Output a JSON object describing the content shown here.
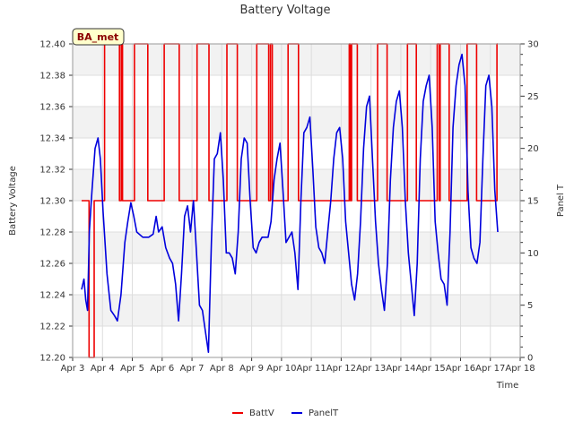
{
  "chart_data": {
    "type": "line",
    "title": "Battery Voltage",
    "xlabel": "Time",
    "ylabel": "Battery Voltage",
    "y2label": "Panel T",
    "station_label": "BA_met",
    "x_tick_labels": [
      "Apr 3",
      "Apr 4",
      "Apr 5",
      "Apr 6",
      "Apr 7",
      "Apr 8",
      "Apr 9",
      "Apr 10",
      "Apr 11",
      "Apr 12",
      "Apr 13",
      "Apr 14",
      "Apr 15",
      "Apr 16",
      "Apr 17",
      "Apr 18"
    ],
    "xlim": [
      3,
      18
    ],
    "ylim": [
      12.2,
      12.4
    ],
    "y_ticks": [
      "12.20",
      "12.22",
      "12.24",
      "12.26",
      "12.28",
      "12.30",
      "12.32",
      "12.34",
      "12.36",
      "12.38",
      "12.40"
    ],
    "y2lim": [
      0,
      30
    ],
    "y2_ticks": [
      "0",
      "5",
      "10",
      "15",
      "20",
      "25",
      "30"
    ],
    "legend": [
      {
        "name": "BattV",
        "color": "#ee0000"
      },
      {
        "name": "PanelT",
        "color": "#0000dd"
      }
    ],
    "series": [
      {
        "name": "BattV",
        "axis": "left",
        "color": "#ee0000",
        "step": true,
        "points": [
          [
            3.3,
            12.3
          ],
          [
            3.52,
            12.3
          ],
          [
            3.55,
            12.2
          ],
          [
            3.7,
            12.2
          ],
          [
            3.72,
            12.3
          ],
          [
            4.05,
            12.3
          ],
          [
            4.07,
            12.4
          ],
          [
            4.55,
            12.4
          ],
          [
            4.57,
            12.3
          ],
          [
            4.62,
            12.3
          ],
          [
            4.63,
            12.4
          ],
          [
            4.66,
            12.4
          ],
          [
            4.67,
            12.3
          ],
          [
            5.05,
            12.3
          ],
          [
            5.07,
            12.4
          ],
          [
            5.5,
            12.4
          ],
          [
            5.52,
            12.3
          ],
          [
            6.05,
            12.3
          ],
          [
            6.07,
            12.4
          ],
          [
            6.55,
            12.4
          ],
          [
            6.57,
            12.3
          ],
          [
            7.15,
            12.3
          ],
          [
            7.17,
            12.4
          ],
          [
            7.55,
            12.4
          ],
          [
            7.57,
            12.3
          ],
          [
            8.15,
            12.3
          ],
          [
            8.17,
            12.4
          ],
          [
            8.5,
            12.4
          ],
          [
            8.52,
            12.3
          ],
          [
            9.15,
            12.3
          ],
          [
            9.17,
            12.4
          ],
          [
            9.55,
            12.4
          ],
          [
            9.57,
            12.3
          ],
          [
            9.62,
            12.3
          ],
          [
            9.63,
            12.4
          ],
          [
            9.68,
            12.4
          ],
          [
            9.69,
            12.3
          ],
          [
            10.2,
            12.3
          ],
          [
            10.22,
            12.4
          ],
          [
            10.55,
            12.4
          ],
          [
            10.57,
            12.3
          ],
          [
            12.25,
            12.3
          ],
          [
            12.27,
            12.4
          ],
          [
            12.3,
            12.4
          ],
          [
            12.31,
            12.3
          ],
          [
            12.34,
            12.3
          ],
          [
            12.35,
            12.4
          ],
          [
            12.52,
            12.4
          ],
          [
            12.54,
            12.3
          ],
          [
            13.2,
            12.3
          ],
          [
            13.22,
            12.4
          ],
          [
            13.52,
            12.4
          ],
          [
            13.54,
            12.3
          ],
          [
            14.2,
            12.3
          ],
          [
            14.22,
            12.4
          ],
          [
            14.5,
            12.4
          ],
          [
            14.52,
            12.3
          ],
          [
            15.2,
            12.3
          ],
          [
            15.22,
            12.4
          ],
          [
            15.28,
            12.4
          ],
          [
            15.29,
            12.3
          ],
          [
            15.31,
            12.3
          ],
          [
            15.32,
            12.4
          ],
          [
            15.6,
            12.4
          ],
          [
            15.62,
            12.3
          ],
          [
            16.2,
            12.3
          ],
          [
            16.22,
            12.4
          ],
          [
            16.52,
            12.4
          ],
          [
            16.54,
            12.3
          ],
          [
            17.2,
            12.3
          ],
          [
            17.22,
            12.4
          ],
          [
            17.25,
            12.4
          ]
        ]
      },
      {
        "name": "PanelT",
        "axis": "right",
        "color": "#0000dd",
        "points": [
          [
            3.3,
            6.5
          ],
          [
            3.38,
            7.5
          ],
          [
            3.44,
            5.5
          ],
          [
            3.5,
            4.5
          ],
          [
            3.56,
            12.0
          ],
          [
            3.65,
            16.0
          ],
          [
            3.75,
            20.0
          ],
          [
            3.85,
            21.0
          ],
          [
            3.93,
            19.0
          ],
          [
            4.02,
            14.0
          ],
          [
            4.15,
            8.0
          ],
          [
            4.28,
            4.5
          ],
          [
            4.4,
            4.0
          ],
          [
            4.5,
            3.5
          ],
          [
            4.62,
            6.0
          ],
          [
            4.75,
            11.0
          ],
          [
            4.85,
            13.0
          ],
          [
            4.95,
            14.8
          ],
          [
            5.05,
            13.5
          ],
          [
            5.15,
            12.0
          ],
          [
            5.35,
            11.5
          ],
          [
            5.55,
            11.5
          ],
          [
            5.7,
            11.8
          ],
          [
            5.8,
            13.5
          ],
          [
            5.88,
            12.0
          ],
          [
            6.0,
            12.5
          ],
          [
            6.12,
            10.5
          ],
          [
            6.25,
            9.5
          ],
          [
            6.35,
            9.0
          ],
          [
            6.45,
            7.0
          ],
          [
            6.55,
            3.5
          ],
          [
            6.65,
            8.0
          ],
          [
            6.75,
            13.5
          ],
          [
            6.85,
            14.5
          ],
          [
            6.95,
            12.0
          ],
          [
            7.05,
            15.0
          ],
          [
            7.15,
            10.0
          ],
          [
            7.25,
            5.0
          ],
          [
            7.35,
            4.5
          ],
          [
            7.45,
            2.5
          ],
          [
            7.55,
            0.5
          ],
          [
            7.65,
            11.0
          ],
          [
            7.75,
            19.0
          ],
          [
            7.85,
            19.5
          ],
          [
            7.95,
            21.5
          ],
          [
            8.05,
            17.0
          ],
          [
            8.15,
            10.0
          ],
          [
            8.25,
            10.0
          ],
          [
            8.35,
            9.5
          ],
          [
            8.45,
            8.0
          ],
          [
            8.55,
            12.0
          ],
          [
            8.65,
            19.0
          ],
          [
            8.75,
            21.0
          ],
          [
            8.85,
            20.5
          ],
          [
            8.95,
            15.0
          ],
          [
            9.05,
            10.5
          ],
          [
            9.15,
            10.0
          ],
          [
            9.25,
            11.0
          ],
          [
            9.35,
            11.5
          ],
          [
            9.45,
            11.5
          ],
          [
            9.55,
            11.5
          ],
          [
            9.65,
            13.0
          ],
          [
            9.75,
            17.0
          ],
          [
            9.85,
            19.0
          ],
          [
            9.95,
            20.5
          ],
          [
            10.05,
            16.0
          ],
          [
            10.15,
            11.0
          ],
          [
            10.25,
            11.5
          ],
          [
            10.35,
            12.0
          ],
          [
            10.45,
            10.0
          ],
          [
            10.55,
            6.5
          ],
          [
            10.65,
            15.0
          ],
          [
            10.75,
            21.5
          ],
          [
            10.85,
            22.0
          ],
          [
            10.95,
            23.0
          ],
          [
            11.05,
            18.0
          ],
          [
            11.15,
            12.5
          ],
          [
            11.25,
            10.5
          ],
          [
            11.35,
            10.0
          ],
          [
            11.45,
            9.0
          ],
          [
            11.55,
            12.0
          ],
          [
            11.65,
            15.0
          ],
          [
            11.75,
            19.0
          ],
          [
            11.85,
            21.5
          ],
          [
            11.95,
            22.0
          ],
          [
            12.05,
            19.0
          ],
          [
            12.15,
            13.0
          ],
          [
            12.25,
            10.0
          ],
          [
            12.35,
            7.0
          ],
          [
            12.45,
            5.5
          ],
          [
            12.55,
            8.0
          ],
          [
            12.65,
            13.0
          ],
          [
            12.75,
            20.0
          ],
          [
            12.85,
            24.0
          ],
          [
            12.95,
            25.0
          ],
          [
            13.05,
            19.0
          ],
          [
            13.15,
            13.0
          ],
          [
            13.25,
            9.0
          ],
          [
            13.35,
            6.5
          ],
          [
            13.45,
            4.5
          ],
          [
            13.55,
            9.0
          ],
          [
            13.65,
            17.0
          ],
          [
            13.75,
            22.0
          ],
          [
            13.85,
            24.5
          ],
          [
            13.95,
            25.5
          ],
          [
            14.05,
            22.0
          ],
          [
            14.15,
            15.0
          ],
          [
            14.25,
            10.0
          ],
          [
            14.35,
            7.0
          ],
          [
            14.45,
            4.0
          ],
          [
            14.55,
            9.0
          ],
          [
            14.65,
            19.0
          ],
          [
            14.75,
            24.5
          ],
          [
            14.85,
            26.0
          ],
          [
            14.95,
            27.0
          ],
          [
            15.05,
            22.0
          ],
          [
            15.15,
            13.0
          ],
          [
            15.25,
            10.0
          ],
          [
            15.35,
            7.5
          ],
          [
            15.45,
            7.0
          ],
          [
            15.55,
            5.0
          ],
          [
            15.65,
            12.0
          ],
          [
            15.75,
            22.0
          ],
          [
            15.85,
            26.0
          ],
          [
            15.95,
            28.0
          ],
          [
            16.05,
            29.0
          ],
          [
            16.15,
            26.0
          ],
          [
            16.25,
            16.0
          ],
          [
            16.35,
            10.5
          ],
          [
            16.45,
            9.5
          ],
          [
            16.55,
            9.0
          ],
          [
            16.65,
            11.0
          ],
          [
            16.75,
            19.0
          ],
          [
            16.85,
            26.0
          ],
          [
            16.95,
            27.0
          ],
          [
            17.05,
            24.0
          ],
          [
            17.15,
            16.0
          ],
          [
            17.25,
            12.0
          ]
        ]
      }
    ]
  }
}
